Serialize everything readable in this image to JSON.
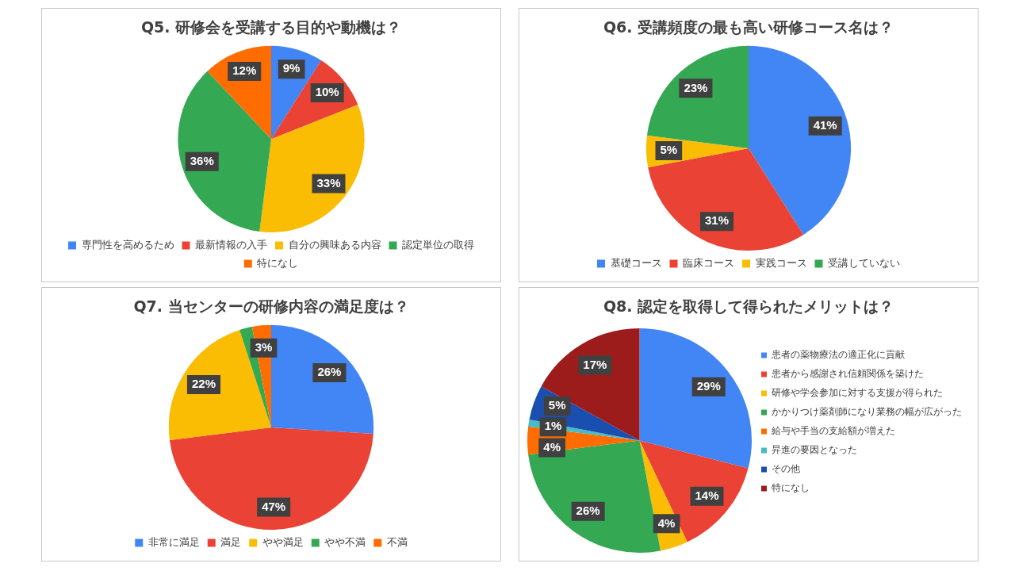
{
  "chart_data": [
    {
      "type": "pie",
      "title": "Q5. 研修会を受講する目的や動機は？",
      "categories": [
        "専門性を高めるため",
        "最新情報の入手",
        "自分の興味ある内容",
        "認定単位の取得",
        "特になし"
      ],
      "values": [
        9,
        10,
        33,
        36,
        12
      ],
      "colors": [
        "#4285f4",
        "#ea4335",
        "#fbbc04",
        "#34a853",
        "#ff6d01"
      ],
      "legend": "bottom",
      "value_labels": [
        "9%",
        "10%",
        "33%",
        "36%",
        "12%"
      ]
    },
    {
      "type": "pie",
      "title": "Q6. 受講頻度の最も高い研修コース名は？",
      "categories": [
        "基礎コース",
        "臨床コース",
        "実践コース",
        "受講していない"
      ],
      "values": [
        41,
        31,
        5,
        23
      ],
      "colors": [
        "#4285f4",
        "#ea4335",
        "#fbbc04",
        "#34a853"
      ],
      "legend": "bottom",
      "value_labels": [
        "41%",
        "31%",
        "5%",
        "23%"
      ]
    },
    {
      "type": "pie",
      "title": "Q7. 当センターの研修内容の満足度は？",
      "categories": [
        "非常に満足",
        "満足",
        "やや満足",
        "やや不満",
        "不満"
      ],
      "values": [
        26,
        47,
        22,
        2,
        3
      ],
      "colors": [
        "#4285f4",
        "#ea4335",
        "#fbbc04",
        "#34a853",
        "#ff6d01"
      ],
      "legend": "bottom",
      "value_labels": [
        "26%",
        "47%",
        "22%",
        null,
        "3%"
      ]
    },
    {
      "type": "pie",
      "title": "Q8. 認定を取得して得られたメリットは？",
      "categories": [
        "患者の薬物療法の適正化に貢献",
        "患者から感謝され信頼関係を築けた",
        "研修や学会参加に対する支援が得られた",
        "かかりつけ薬剤師になり業務の幅が広がった",
        "給与や手当の支給額が増えた",
        "昇進の要因となった",
        "その他",
        "特になし"
      ],
      "values": [
        29,
        14,
        4,
        26,
        4,
        1,
        5,
        17
      ],
      "colors": [
        "#4285f4",
        "#ea4335",
        "#fbbc04",
        "#34a853",
        "#ff6d01",
        "#46bdc6",
        "#1a4fb0",
        "#9c1c1c"
      ],
      "legend": "right",
      "value_labels": [
        "29%",
        "14%",
        "4%",
        "26%",
        "4%",
        "1%",
        "5%",
        "17%"
      ]
    }
  ]
}
